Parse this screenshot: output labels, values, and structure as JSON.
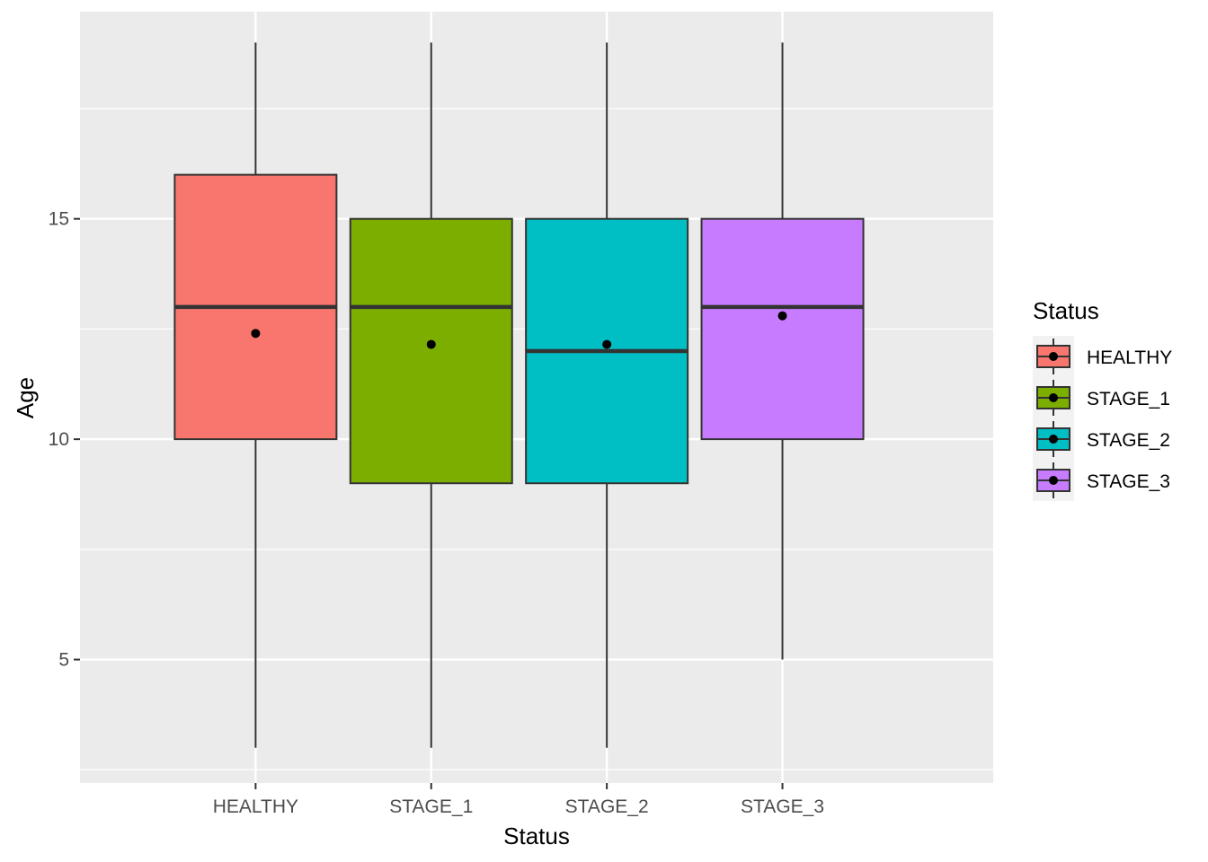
{
  "chart_data": {
    "type": "boxplot",
    "xlabel": "Status",
    "ylabel": "Age",
    "ylim": [
      2.2,
      19.7
    ],
    "y_ticks": [
      5,
      10,
      15
    ],
    "y_minor_ticks": [
      2.5,
      7.5,
      12.5,
      17.5
    ],
    "grid": true,
    "categories": [
      "HEALTHY",
      "STAGE_1",
      "STAGE_2",
      "STAGE_3"
    ],
    "series": [
      {
        "category": "HEALTHY",
        "whisker_low": 3,
        "q1": 10,
        "median": 13,
        "q3": 16,
        "whisker_high": 19,
        "mean": 12.4,
        "color": "#F8766D"
      },
      {
        "category": "STAGE_1",
        "whisker_low": 3,
        "q1": 9,
        "median": 13,
        "q3": 15,
        "whisker_high": 19,
        "mean": 12.15,
        "color": "#7CAE00"
      },
      {
        "category": "STAGE_2",
        "whisker_low": 3,
        "q1": 9,
        "median": 12,
        "q3": 15,
        "whisker_high": 19,
        "mean": 12.15,
        "color": "#00BFC4"
      },
      {
        "category": "STAGE_3",
        "whisker_low": 5,
        "q1": 10,
        "median": 13,
        "q3": 15,
        "whisker_high": 19,
        "mean": 12.8,
        "color": "#C77CFF"
      }
    ],
    "legend": {
      "title": "Status",
      "placement": "right",
      "entries": [
        "HEALTHY",
        "STAGE_1",
        "STAGE_2",
        "STAGE_3"
      ]
    },
    "panel_background": "#EBEBEB",
    "grid_color": "#FFFFFF"
  }
}
